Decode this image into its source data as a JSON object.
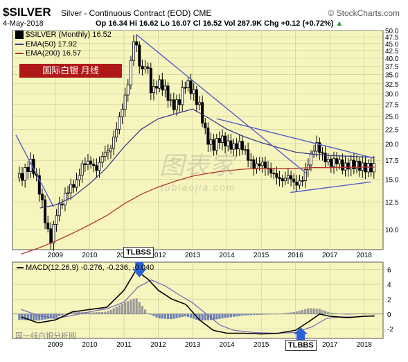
{
  "header": {
    "symbol": "$SILVER",
    "description": "Silver - Continuous Contract (EOD) CME",
    "brand": "© StockCharts.com",
    "date": "4-May-2018",
    "ohlc": "Op 16.34  Hi 16.62  Lo 16.07  Cl 16.52  Vol 287.9K  Chg +0.12 (+0.72%)",
    "ohlc_arrow": "▲"
  },
  "legend": {
    "main": "$SILVER (Monthly) 16.52",
    "ema50": "EMA(50) 17.92",
    "ema200": "EMA(200) 16.57"
  },
  "tag_label": "国际白银  月线",
  "watermark": "图表家",
  "watermark_url": "tubiaojia.com",
  "macd_legend": "MACD(12,26,9) -0.276, -0.236, -0.040",
  "annotations": {
    "top": "TLBSS",
    "bottom": "TLBBS"
  },
  "footer_watermark": "国一线白银分析网",
  "colors": {
    "plot_bg": "#f6f5bd",
    "ema50": "#3a3f8f",
    "ema200": "#b83232",
    "trendline": "#5560c8",
    "macd_line": "#000000",
    "signal_line": "#7b6bb8",
    "hist_pos": "#9a9a9a",
    "hist_neg": "#6e7fb4",
    "arrow": "#2a62d8",
    "tag_bg": "#b01818"
  },
  "chart_data": [
    {
      "type": "candlestick",
      "title": "$SILVER (Monthly) 16.52",
      "y_ticks": [
        10.0,
        12.5,
        15.0,
        17.5,
        20.0,
        22.5,
        25.0,
        27.5,
        30.0,
        32.5,
        35.0,
        37.5,
        40.0,
        42.5,
        45.0,
        47.5,
        50.0
      ],
      "y_scale": "log",
      "ylim": [
        8.5,
        50
      ],
      "x_ticks": [
        "2009",
        "2010",
        "2011",
        "2012",
        "2013",
        "2014",
        "2015",
        "2016",
        "2017",
        "2018"
      ],
      "grid": true,
      "series": [
        {
          "name": "$SILVER (Monthly) 16.52",
          "close_path": [
            [
              2008.0,
              15.2
            ],
            [
              2008.3,
              17.2
            ],
            [
              2008.55,
              13.5
            ],
            [
              2008.75,
              10.0
            ],
            [
              2008.9,
              9.0
            ],
            [
              2009.0,
              11.3
            ],
            [
              2009.2,
              12.5
            ],
            [
              2009.4,
              14.0
            ],
            [
              2009.6,
              14.5
            ],
            [
              2009.8,
              17.0
            ],
            [
              2010.0,
              17.3
            ],
            [
              2010.2,
              16.2
            ],
            [
              2010.4,
              18.5
            ],
            [
              2010.6,
              19.0
            ],
            [
              2010.8,
              23.0
            ],
            [
              2011.0,
              28.0
            ],
            [
              2011.15,
              34.0
            ],
            [
              2011.3,
              48.0
            ],
            [
              2011.5,
              35.0
            ],
            [
              2011.65,
              39.0
            ],
            [
              2011.8,
              30.0
            ],
            [
              2012.0,
              33.0
            ],
            [
              2012.2,
              31.0
            ],
            [
              2012.4,
              27.0
            ],
            [
              2012.6,
              28.0
            ],
            [
              2012.8,
              33.0
            ],
            [
              2013.0,
              30.5
            ],
            [
              2013.2,
              27.0
            ],
            [
              2013.4,
              21.0
            ],
            [
              2013.6,
              19.5
            ],
            [
              2013.8,
              21.0
            ],
            [
              2014.0,
              20.0
            ],
            [
              2014.2,
              19.5
            ],
            [
              2014.4,
              20.0
            ],
            [
              2014.6,
              18.0
            ],
            [
              2014.8,
              16.5
            ],
            [
              2015.0,
              17.2
            ],
            [
              2015.2,
              16.2
            ],
            [
              2015.4,
              15.5
            ],
            [
              2015.6,
              14.8
            ],
            [
              2015.8,
              15.5
            ],
            [
              2016.0,
              14.3
            ],
            [
              2016.2,
              15.0
            ],
            [
              2016.4,
              17.5
            ],
            [
              2016.6,
              20.0
            ],
            [
              2016.8,
              18.0
            ],
            [
              2017.0,
              17.0
            ],
            [
              2017.2,
              17.5
            ],
            [
              2017.4,
              16.5
            ],
            [
              2017.6,
              17.0
            ],
            [
              2017.8,
              16.8
            ],
            [
              2018.0,
              16.5
            ],
            [
              2018.3,
              16.52
            ]
          ]
        },
        {
          "name": "EMA(50) 17.92",
          "points": [
            [
              2008.55,
              11.9
            ],
            [
              2009.0,
              12.2
            ],
            [
              2009.5,
              13.0
            ],
            [
              2010.0,
              14.5
            ],
            [
              2010.5,
              16.5
            ],
            [
              2011.0,
              19.5
            ],
            [
              2011.5,
              22.5
            ],
            [
              2012.0,
              24.5
            ],
            [
              2012.5,
              25.5
            ],
            [
              2013.0,
              26.5
            ],
            [
              2013.5,
              24.5
            ],
            [
              2014.0,
              22.5
            ],
            [
              2014.5,
              21.2
            ],
            [
              2015.0,
              20.2
            ],
            [
              2015.5,
              19.4
            ],
            [
              2016.0,
              18.7
            ],
            [
              2016.5,
              18.4
            ],
            [
              2017.0,
              18.2
            ],
            [
              2017.5,
              18.1
            ],
            [
              2018.3,
              17.92
            ]
          ]
        },
        {
          "name": "EMA(200) 16.57",
          "points": [
            [
              2008.0,
              8.2
            ],
            [
              2008.5,
              8.6
            ],
            [
              2009.0,
              9.1
            ],
            [
              2009.5,
              9.7
            ],
            [
              2010.0,
              10.4
            ],
            [
              2010.5,
              11.2
            ],
            [
              2011.0,
              12.3
            ],
            [
              2011.5,
              13.3
            ],
            [
              2012.0,
              14.1
            ],
            [
              2012.5,
              14.8
            ],
            [
              2013.0,
              15.4
            ],
            [
              2013.5,
              15.8
            ],
            [
              2014.0,
              16.1
            ],
            [
              2014.5,
              16.3
            ],
            [
              2015.0,
              16.4
            ],
            [
              2015.5,
              16.4
            ],
            [
              2016.0,
              16.4
            ],
            [
              2016.5,
              16.5
            ],
            [
              2017.0,
              16.5
            ],
            [
              2017.5,
              16.55
            ],
            [
              2018.3,
              16.57
            ]
          ]
        }
      ],
      "trendlines": [
        [
          [
            2007.85,
            21.5
          ],
          [
            2008.95,
            12.0
          ]
        ],
        [
          [
            2011.35,
            48.5
          ],
          [
            2016.3,
            15.8
          ]
        ],
        [
          [
            2013.7,
            24.5
          ],
          [
            2018.3,
            17.8
          ]
        ],
        [
          [
            2015.85,
            13.5
          ],
          [
            2018.2,
            14.7
          ]
        ]
      ]
    },
    {
      "type": "line",
      "title": "MACD(12,26,9) -0.276, -0.236, -0.040",
      "y_ticks": [
        -2,
        0,
        2,
        4,
        6
      ],
      "ylim": [
        -3.3,
        7.0
      ],
      "x_ticks": [
        "2009",
        "2010",
        "2011",
        "2012",
        "2013",
        "2014",
        "2015",
        "2016",
        "2017",
        "2018"
      ],
      "series": [
        {
          "name": "MACD",
          "points": [
            [
              2008.0,
              -0.4
            ],
            [
              2008.5,
              -1.2
            ],
            [
              2009.0,
              -0.8
            ],
            [
              2009.5,
              0.3
            ],
            [
              2010.0,
              0.6
            ],
            [
              2010.5,
              0.9
            ],
            [
              2011.0,
              3.2
            ],
            [
              2011.35,
              5.9
            ],
            [
              2011.7,
              4.7
            ],
            [
              2012.0,
              3.2
            ],
            [
              2012.4,
              2.0
            ],
            [
              2012.8,
              1.3
            ],
            [
              2013.2,
              -0.8
            ],
            [
              2013.6,
              -2.2
            ],
            [
              2014.0,
              -2.6
            ],
            [
              2014.5,
              -2.6
            ],
            [
              2015.0,
              -2.7
            ],
            [
              2015.5,
              -2.6
            ],
            [
              2016.0,
              -2.2
            ],
            [
              2016.4,
              -1.0
            ],
            [
              2016.7,
              0.0
            ],
            [
              2017.0,
              -0.3
            ],
            [
              2017.5,
              -0.5
            ],
            [
              2018.0,
              -0.3
            ],
            [
              2018.3,
              -0.276
            ]
          ]
        },
        {
          "name": "Signal",
          "points": [
            [
              2008.0,
              0.6
            ],
            [
              2008.5,
              -0.2
            ],
            [
              2009.0,
              -0.6
            ],
            [
              2009.5,
              -0.2
            ],
            [
              2010.0,
              0.3
            ],
            [
              2010.5,
              0.7
            ],
            [
              2011.0,
              1.6
            ],
            [
              2011.4,
              3.6
            ],
            [
              2011.8,
              4.6
            ],
            [
              2012.2,
              3.8
            ],
            [
              2012.6,
              2.6
            ],
            [
              2013.0,
              1.5
            ],
            [
              2013.4,
              0.0
            ],
            [
              2013.8,
              -1.5
            ],
            [
              2014.2,
              -2.2
            ],
            [
              2014.8,
              -2.5
            ],
            [
              2015.4,
              -2.6
            ],
            [
              2016.0,
              -2.5
            ],
            [
              2016.5,
              -1.7
            ],
            [
              2016.9,
              -0.6
            ],
            [
              2017.3,
              -0.4
            ],
            [
              2017.8,
              -0.4
            ],
            [
              2018.3,
              -0.236
            ]
          ]
        },
        {
          "name": "Histogram",
          "points": [
            [
              2008.0,
              -0.8
            ],
            [
              2008.5,
              -0.9
            ],
            [
              2009.0,
              -0.5
            ],
            [
              2009.5,
              0.4
            ],
            [
              2010.0,
              0.2
            ],
            [
              2010.5,
              0.3
            ],
            [
              2011.0,
              1.5
            ],
            [
              2011.35,
              2.2
            ],
            [
              2011.7,
              0.1
            ],
            [
              2012.0,
              -0.6
            ],
            [
              2012.4,
              -0.7
            ],
            [
              2012.8,
              -0.3
            ],
            [
              2013.2,
              -0.9
            ],
            [
              2013.6,
              -0.8
            ],
            [
              2014.0,
              -0.5
            ],
            [
              2014.5,
              -0.2
            ],
            [
              2015.0,
              -0.1
            ],
            [
              2015.5,
              0.0
            ],
            [
              2016.0,
              0.3
            ],
            [
              2016.4,
              0.8
            ],
            [
              2016.7,
              0.7
            ],
            [
              2017.0,
              0.2
            ],
            [
              2017.5,
              -0.1
            ],
            [
              2018.0,
              0.1
            ],
            [
              2018.3,
              -0.04
            ]
          ]
        }
      ]
    }
  ]
}
